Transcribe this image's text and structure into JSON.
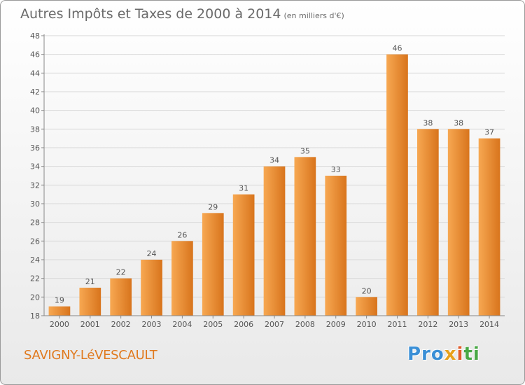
{
  "header": {
    "title": "Autres Impôts et Taxes de 2000 à 2014",
    "unit": "(en milliers d'€)"
  },
  "footer": {
    "town": "SAVIGNY-LéVESCAULT",
    "logo_parts": [
      "Pro",
      "x",
      "i",
      "ti"
    ]
  },
  "colors": {
    "bar_light": "#f7a852",
    "bar_dark": "#d8741c",
    "grid": "#d8d8d8",
    "axis_text": "#555555"
  },
  "chart_data": {
    "type": "bar",
    "title": "Autres Impôts et Taxes de 2000 à 2014",
    "subtitle": "(en milliers d'€)",
    "xlabel": "",
    "ylabel": "",
    "categories": [
      "2000",
      "2001",
      "2002",
      "2003",
      "2004",
      "2005",
      "2006",
      "2007",
      "2008",
      "2009",
      "2010",
      "2011",
      "2012",
      "2013",
      "2014"
    ],
    "values": [
      19,
      21,
      22,
      24,
      26,
      29,
      31,
      34,
      35,
      33,
      20,
      46,
      38,
      38,
      37
    ],
    "ylim": [
      18,
      48
    ],
    "yticks": [
      18,
      20,
      22,
      24,
      26,
      28,
      30,
      32,
      34,
      36,
      38,
      40,
      42,
      44,
      46,
      48
    ],
    "grid": true
  }
}
